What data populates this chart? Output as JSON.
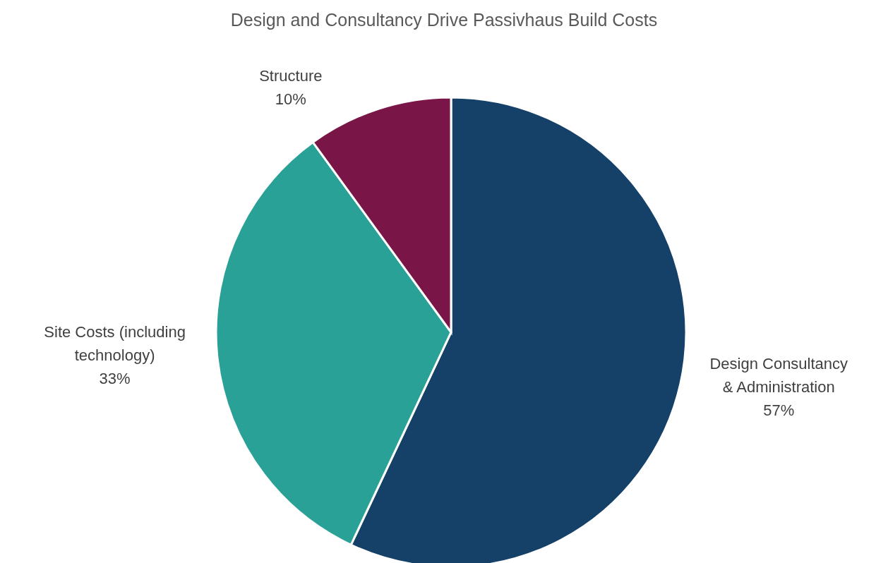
{
  "chart_data": {
    "type": "pie",
    "title": "Design and Consultancy Drive Passivhaus Build Costs",
    "categories": [
      "Design Consultancy\n& Administration",
      "Site Costs (including\ntechnology)",
      "Structure"
    ],
    "values": [
      57,
      33,
      10
    ],
    "value_labels": [
      "57%",
      "33%",
      "10%"
    ],
    "colors": [
      "#154169",
      "#2aa197",
      "#7a1548"
    ],
    "legend": false
  }
}
